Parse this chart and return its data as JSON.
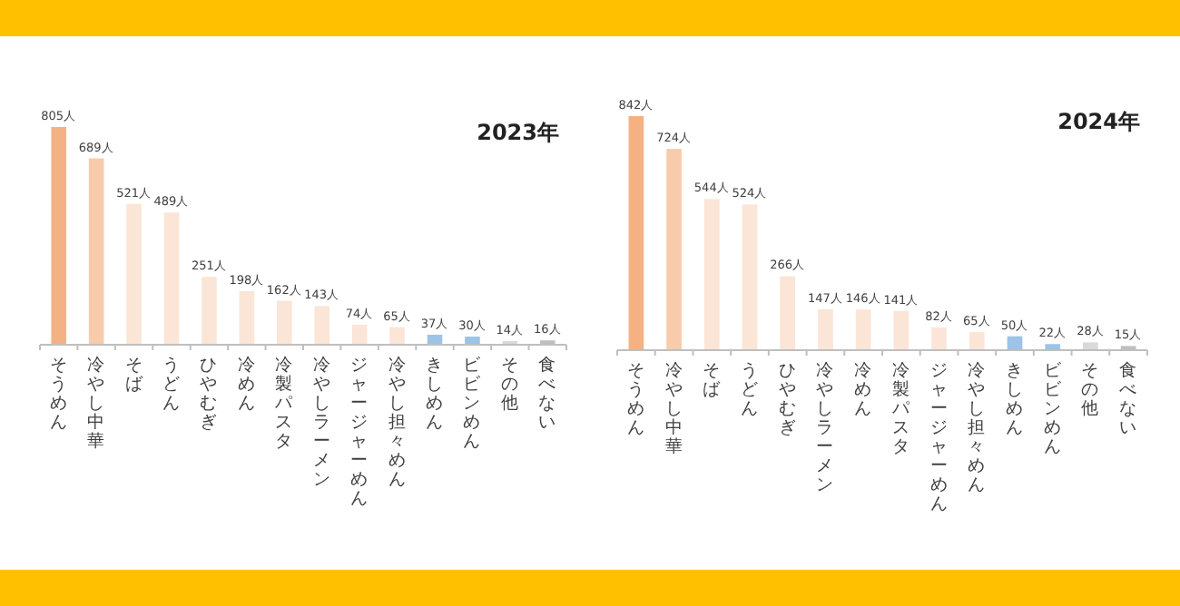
{
  "chart_data": [
    {
      "type": "bar",
      "title": "2023年",
      "categories": [
        "そうめん",
        "冷やし中華",
        "そば",
        "うどん",
        "ひやむぎ",
        "冷めん",
        "冷製パスタ",
        "冷やしラーメン",
        "ジャージャーめん",
        "冷やし担々めん",
        "きしめん",
        "ビビンめん",
        "その他",
        "食べない"
      ],
      "values": [
        805,
        689,
        521,
        489,
        251,
        198,
        162,
        143,
        74,
        65,
        37,
        30,
        14,
        16
      ],
      "value_labels": [
        "805人",
        "689人",
        "521人",
        "489人",
        "251人",
        "198人",
        "162人",
        "143人",
        "74人",
        "65人",
        "37人",
        "30人",
        "14人",
        "16人"
      ],
      "colors": [
        "#f4b183",
        "#f8cbad",
        "#fbe5d6",
        "#fbe5d6",
        "#fbe5d6",
        "#fbe5d6",
        "#fbe5d6",
        "#fbe5d6",
        "#fbe5d6",
        "#fbe5d6",
        "#9dc3e6",
        "#9dc3e6",
        "#d9d9d9",
        "#bfbfbf"
      ]
    },
    {
      "type": "bar",
      "title": "2024年",
      "categories": [
        "そうめん",
        "冷やし中華",
        "そば",
        "うどん",
        "ひやむぎ",
        "冷やしラーメン",
        "冷めん",
        "冷製パスタ",
        "ジャージャーめん",
        "冷やし担々めん",
        "きしめん",
        "ビビンめん",
        "その他",
        "食べない"
      ],
      "values": [
        842,
        724,
        544,
        524,
        266,
        147,
        146,
        141,
        82,
        65,
        50,
        22,
        28,
        15
      ],
      "value_labels": [
        "842人",
        "724人",
        "544人",
        "524人",
        "266人",
        "147人",
        "146人",
        "141人",
        "82人",
        "65人",
        "50人",
        "22人",
        "28人",
        "15人"
      ],
      "colors": [
        "#f4b183",
        "#f8cbad",
        "#fbe5d6",
        "#fbe5d6",
        "#fbe5d6",
        "#fbe5d6",
        "#fbe5d6",
        "#fbe5d6",
        "#fbe5d6",
        "#fbe5d6",
        "#9dc3e6",
        "#9dc3e6",
        "#d9d9d9",
        "#bfbfbf"
      ]
    }
  ]
}
